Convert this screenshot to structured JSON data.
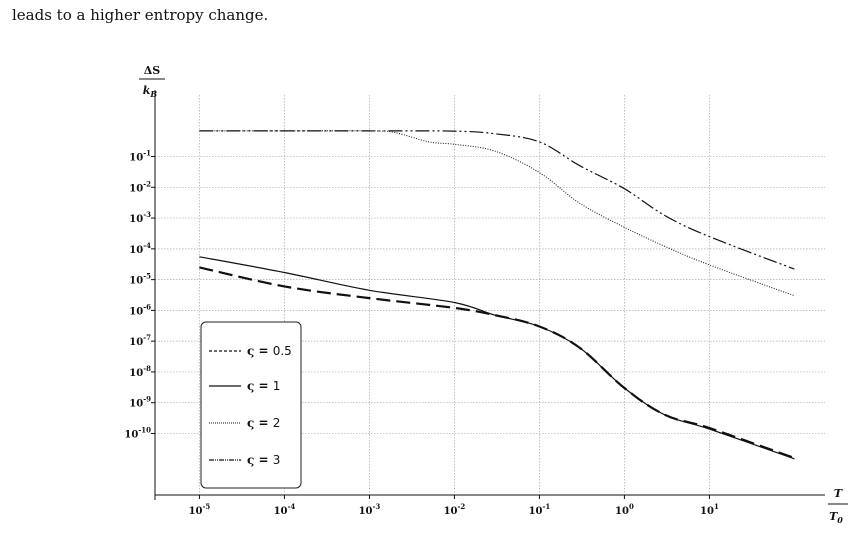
{
  "intro_text": "leads to a higher entropy change.",
  "chart_data": {
    "type": "line",
    "title": "",
    "ylabel_num": "ΔS",
    "ylabel_den": "k",
    "ylabel_den_sub": "B",
    "xlabel_num": "T",
    "xlabel_den": "T",
    "xlabel_den_sub": "0",
    "x_scale": "log",
    "y_scale": "log",
    "xlim": [
      3e-06,
      200
    ],
    "ylim": [
      1e-12,
      10
    ],
    "grid": true,
    "x_ticks": [
      {
        "base": "10",
        "exp": "-5",
        "value": 1e-05
      },
      {
        "base": "10",
        "exp": "-4",
        "value": 0.0001
      },
      {
        "base": "10",
        "exp": "-3",
        "value": 0.001
      },
      {
        "base": "10",
        "exp": "-2",
        "value": 0.01
      },
      {
        "base": "10",
        "exp": "-1",
        "value": 0.1
      },
      {
        "base": "10",
        "exp": "0",
        "value": 1
      },
      {
        "base": "10",
        "exp": "1",
        "value": 10
      }
    ],
    "y_ticks": [
      {
        "base": "10",
        "exp": "-1",
        "value": 0.1
      },
      {
        "base": "10",
        "exp": "-2",
        "value": 0.01
      },
      {
        "base": "10",
        "exp": "-3",
        "value": 0.001
      },
      {
        "base": "10",
        "exp": "-4",
        "value": 0.0001
      },
      {
        "base": "10",
        "exp": "-5",
        "value": 1e-05
      },
      {
        "base": "10",
        "exp": "-6",
        "value": 1e-06
      },
      {
        "base": "10",
        "exp": "-7",
        "value": 1e-07
      },
      {
        "base": "10",
        "exp": "-8",
        "value": 1e-08
      },
      {
        "base": "10",
        "exp": "-9",
        "value": 1e-09
      },
      {
        "base": "10",
        "exp": "-10",
        "value": 1e-10
      }
    ],
    "legend_placement": "bottom-left",
    "series": [
      {
        "name": "ς = 0.5",
        "symbol": "ς",
        "value_label": "0.5",
        "dash": "dashed",
        "x": [
          1e-05,
          0.0001,
          0.001,
          0.01,
          0.03,
          0.1,
          0.3,
          1,
          3,
          10,
          100
        ],
        "y": [
          2.5e-05,
          6e-06,
          2.5e-06,
          1.2e-06,
          7e-07,
          3e-07,
          6e-08,
          3e-09,
          4e-10,
          1.5e-10,
          1.6e-11
        ]
      },
      {
        "name": "ς = 1",
        "symbol": "ς",
        "value_label": "1",
        "dash": "solid",
        "x": [
          1e-05,
          0.0001,
          0.001,
          0.01,
          0.03,
          0.1,
          0.3,
          1,
          3,
          10,
          100
        ],
        "y": [
          5.5e-05,
          1.7e-05,
          4.5e-06,
          1.8e-06,
          7e-07,
          3e-07,
          6e-08,
          3e-09,
          4e-10,
          1.4e-10,
          1.5e-11
        ]
      },
      {
        "name": "ς = 2",
        "symbol": "ς",
        "value_label": "2",
        "dash": "dotted",
        "x": [
          1e-05,
          0.0001,
          0.001,
          0.002,
          0.005,
          0.01,
          0.03,
          0.1,
          0.3,
          1,
          3,
          10,
          100
        ],
        "y": [
          0.68,
          0.68,
          0.68,
          0.6,
          0.3,
          0.25,
          0.15,
          0.03,
          0.003,
          0.0005,
          0.00012,
          3e-05,
          3e-06
        ]
      },
      {
        "name": "ς = 3",
        "symbol": "ς",
        "value_label": "3",
        "dash": "dash-dot-dot",
        "x": [
          1e-05,
          0.0001,
          0.001,
          0.01,
          0.03,
          0.1,
          0.3,
          1,
          3,
          10,
          100
        ],
        "y": [
          0.68,
          0.68,
          0.68,
          0.67,
          0.55,
          0.3,
          0.05,
          0.009,
          0.0012,
          0.00025,
          2.2e-05
        ]
      }
    ]
  }
}
